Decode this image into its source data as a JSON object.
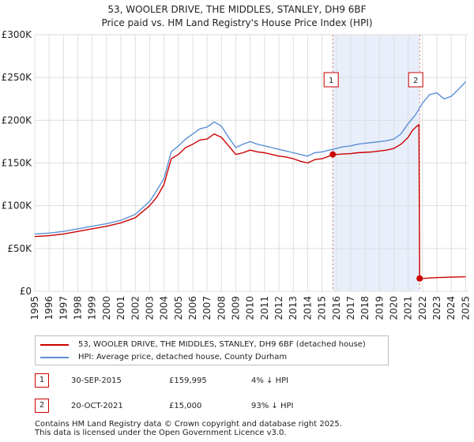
{
  "title": {
    "line1": "53, WOOLER DRIVE, THE MIDDLES, STANLEY, DH9 6BF",
    "line2": "Price paid vs. HM Land Registry's House Price Index (HPI)"
  },
  "colors": {
    "hpi": "#5b8fd6",
    "price": "#cc0000",
    "shade": "#e8effb",
    "marker_line": "#e07070",
    "grid": "#dddddd"
  },
  "chart_data": {
    "type": "line",
    "title": "53, WOOLER DRIVE, THE MIDDLES, STANLEY, DH9 6BF — Price paid vs. HM Land Registry's House Price Index (HPI)",
    "xlabel": "",
    "ylabel": "",
    "xlim": [
      1995,
      2025.2
    ],
    "ylim": [
      0,
      300000
    ],
    "x_ticks": [
      1995,
      1996,
      1997,
      1998,
      1999,
      2000,
      2001,
      2002,
      2003,
      2004,
      2005,
      2006,
      2007,
      2008,
      2009,
      2010,
      2011,
      2012,
      2013,
      2014,
      2015,
      2016,
      2017,
      2018,
      2019,
      2020,
      2021,
      2022,
      2023,
      2024,
      2025
    ],
    "y_ticks": [
      {
        "value": 0,
        "label": "£0"
      },
      {
        "value": 50000,
        "label": "£50K"
      },
      {
        "value": 100000,
        "label": "£100K"
      },
      {
        "value": 150000,
        "label": "£150K"
      },
      {
        "value": 200000,
        "label": "£200K"
      },
      {
        "value": 250000,
        "label": "£250K"
      },
      {
        "value": 300000,
        "label": "£300K"
      }
    ],
    "grid": true,
    "shaded_region": [
      2015.75,
      2021.8
    ],
    "series": [
      {
        "name": "53, WOOLER DRIVE, THE MIDDLES, STANLEY, DH9 6BF (detached house)",
        "color": "#cc0000",
        "x": [
          1995,
          1996,
          1997,
          1998,
          1999,
          2000,
          2001,
          2002,
          2003,
          2003.5,
          2004,
          2004.5,
          2005,
          2005.5,
          2006,
          2006.5,
          2007,
          2007.5,
          2008,
          2008.5,
          2009,
          2009.5,
          2010,
          2010.5,
          2011,
          2011.5,
          2012,
          2012.5,
          2013,
          2013.5,
          2014,
          2014.5,
          2015,
          2015.5,
          2015.75,
          2016,
          2016.5,
          2017,
          2017.5,
          2018,
          2018.5,
          2019,
          2019.5,
          2020,
          2020.5,
          2021,
          2021.3,
          2021.6,
          2021.75,
          2021.8,
          2022,
          2022.5,
          2023,
          2023.5,
          2024,
          2024.5,
          2025
        ],
        "values": [
          64000,
          65000,
          67000,
          70000,
          73000,
          76000,
          80000,
          86000,
          100000,
          110000,
          125000,
          155000,
          160000,
          168000,
          172000,
          177000,
          178000,
          184000,
          180000,
          170000,
          160000,
          162000,
          165000,
          163000,
          162000,
          160000,
          158000,
          157000,
          155000,
          152000,
          150000,
          154000,
          155000,
          158000,
          159995,
          160000,
          160500,
          161000,
          162000,
          162500,
          163000,
          164000,
          165000,
          167000,
          172000,
          180000,
          188000,
          193000,
          195000,
          15000,
          15000,
          15500,
          16000,
          16200,
          16500,
          16700,
          17000
        ]
      },
      {
        "name": "HPI: Average price, detached house, County Durham",
        "color": "#5b8fd6",
        "x": [
          1995,
          1996,
          1997,
          1998,
          1999,
          2000,
          2001,
          2002,
          2003,
          2003.5,
          2004,
          2004.5,
          2005,
          2005.5,
          2006,
          2006.5,
          2007,
          2007.5,
          2008,
          2008.5,
          2009,
          2009.5,
          2010,
          2010.5,
          2011,
          2011.5,
          2012,
          2012.5,
          2013,
          2013.5,
          2014,
          2014.5,
          2015,
          2015.5,
          2016,
          2016.5,
          2017,
          2017.5,
          2018,
          2018.5,
          2019,
          2019.5,
          2020,
          2020.5,
          2021,
          2021.5,
          2022,
          2022.5,
          2023,
          2023.5,
          2024,
          2024.5,
          2025
        ],
        "values": [
          67000,
          68000,
          70000,
          73000,
          76000,
          79000,
          83000,
          90000,
          105000,
          118000,
          132000,
          163000,
          170000,
          178000,
          184000,
          190000,
          192000,
          198000,
          193000,
          180000,
          168000,
          172000,
          175000,
          172000,
          170000,
          168000,
          166000,
          164000,
          162000,
          160000,
          158000,
          162000,
          163000,
          165000,
          167000,
          169000,
          170000,
          172000,
          173000,
          174000,
          175000,
          176000,
          178000,
          184000,
          196000,
          206000,
          220000,
          230000,
          232000,
          225000,
          228000,
          236000,
          245000
        ]
      }
    ],
    "annotations": [
      {
        "label": "1",
        "x": 2015.75,
        "y": 159995,
        "text": "30-SEP-2015"
      },
      {
        "label": "2",
        "x": 2021.8,
        "y": 15000,
        "text": "20-OCT-2021"
      }
    ]
  },
  "legend": {
    "items": [
      {
        "label": "53, WOOLER DRIVE, THE MIDDLES, STANLEY, DH9 6BF (detached house)",
        "color": "#cc0000"
      },
      {
        "label": "HPI: Average price, detached house, County Durham",
        "color": "#5b8fd6"
      }
    ]
  },
  "sales": [
    {
      "num": "1",
      "date": "30-SEP-2015",
      "price": "£159,995",
      "hpi": "4% ↓ HPI"
    },
    {
      "num": "2",
      "date": "20-OCT-2021",
      "price": "£15,000",
      "hpi": "93% ↓ HPI"
    }
  ],
  "footer": {
    "line1": "Contains HM Land Registry data © Crown copyright and database right 2025.",
    "line2": "This data is licensed under the Open Government Licence v3.0."
  }
}
